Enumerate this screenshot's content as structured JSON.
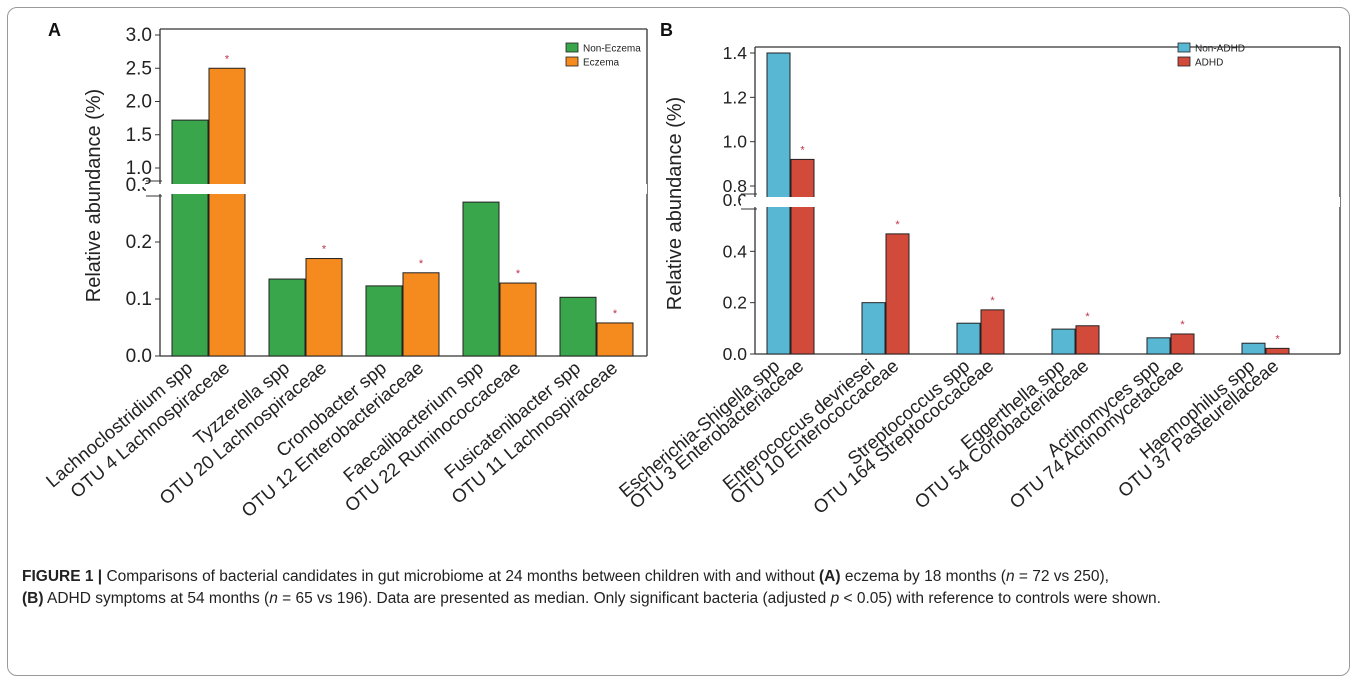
{
  "caption": {
    "label": "FIGURE 1 |",
    "t1": " Comparisons of bacterial candidates in gut microbiome at 24 months between children with and without ",
    "a": "(A)",
    "t2": " eczema by 18 months (",
    "n1": "n",
    "t3": " = 72 vs 250),",
    "b": "(B)",
    "t4": " ADHD symptoms at 54 months (",
    "n2": "n",
    "t5": " = 65 vs 196). Data are presented as median. Only significant bacteria (adjusted ",
    "p": "p",
    "t6": " < 0.05) with reference to controls were shown."
  },
  "chart_data": [
    {
      "type": "bar",
      "panel_label": "A",
      "ylabel": "Relative abundance (%)",
      "axis_break": true,
      "lower_ylim": [
        0,
        0.3
      ],
      "upper_ylim": [
        1.0,
        3.0
      ],
      "lower_ticks": [
        "0.0",
        "0.1",
        "0.2",
        "0.3"
      ],
      "upper_ticks": [
        "1.0",
        "1.5",
        "2.0",
        "2.5",
        "3.0"
      ],
      "legend_position": "top-right",
      "categories": [
        [
          "Lachnoclostridium spp",
          "OTU 4 Lachnospiraceae"
        ],
        [
          "Tyzzerella spp",
          "OTU 20 Lachnospiraceae"
        ],
        [
          "Cronobacter spp",
          "OTU 12 Enterobacteriaceae"
        ],
        [
          "Faecalibacterium spp",
          "OTU 22 Ruminococcaceae"
        ],
        [
          "Fusicatenibacter spp",
          "OTU 11 Lachnospiraceae"
        ]
      ],
      "series": [
        {
          "name": "Non-Eczema",
          "color": "#3aa64b",
          "values": [
            1.72,
            0.135,
            0.123,
            0.27,
            0.103
          ]
        },
        {
          "name": "Eczema",
          "color": "#f58a1f",
          "values": [
            2.5,
            0.171,
            0.146,
            0.128,
            0.058
          ]
        }
      ],
      "significance_marker": "*"
    },
    {
      "type": "bar",
      "panel_label": "B",
      "ylabel": "Relative abundance (%)",
      "axis_break": true,
      "lower_ylim": [
        0,
        0.6
      ],
      "upper_ylim": [
        0.8,
        1.4
      ],
      "lower_ticks": [
        "0.0",
        "0.2",
        "0.4",
        "0.6"
      ],
      "upper_ticks": [
        "0.8",
        "1.0",
        "1.2",
        "1.4"
      ],
      "legend_position": "top-right",
      "categories": [
        [
          "Escherichia-Shigella spp",
          "OTU 3 Enterobacteriaceae"
        ],
        [
          "Enterococcus devriesei",
          "OTU 10 Enterococcaceae"
        ],
        [
          "Streptococcus spp",
          "OTU 164 Streptococcaceae"
        ],
        [
          "Eggerthella spp",
          "OTU 54 Coriobacteriaceae"
        ],
        [
          "Actinomyces spp",
          "OTU 74 Actinomycetaceae"
        ],
        [
          "Haemophilus spp",
          "OTU 37 Pasteurellaceae"
        ]
      ],
      "series": [
        {
          "name": "Non-ADHD",
          "color": "#58b7d3",
          "values": [
            1.4,
            0.2,
            0.12,
            0.097,
            0.063,
            0.042
          ]
        },
        {
          "name": "ADHD",
          "color": "#d24a3a",
          "values": [
            0.92,
            0.468,
            0.172,
            0.11,
            0.078,
            0.022
          ]
        }
      ],
      "significance_marker": "*"
    }
  ]
}
